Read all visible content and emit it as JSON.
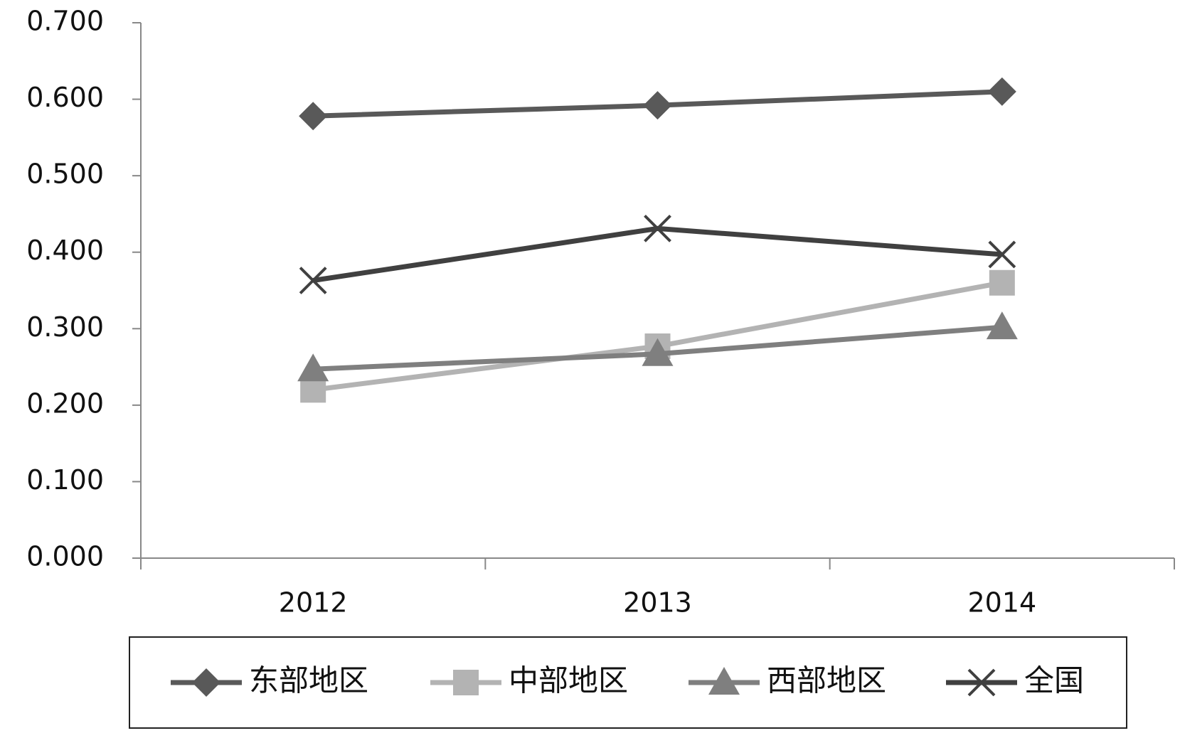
{
  "chart_data": {
    "type": "line",
    "categories": [
      "2012",
      "2013",
      "2014"
    ],
    "series": [
      {
        "name": "东部地区",
        "color": "#595959",
        "marker": "diamond",
        "values": [
          0.578,
          0.592,
          0.61
        ]
      },
      {
        "name": "中部地区",
        "color": "#b3b3b3",
        "marker": "square",
        "values": [
          0.22,
          0.277,
          0.36
        ]
      },
      {
        "name": "西部地区",
        "color": "#7f7f7f",
        "marker": "triangle",
        "values": [
          0.247,
          0.267,
          0.302
        ]
      },
      {
        "name": "全国",
        "color": "#404040",
        "marker": "x",
        "values": [
          0.363,
          0.431,
          0.397
        ]
      }
    ],
    "ylim": [
      0,
      0.7
    ],
    "yticks": [
      {
        "value": 0,
        "label": "0.000"
      },
      {
        "value": 0.1,
        "label": "0.100"
      },
      {
        "value": 0.2,
        "label": "0.200"
      },
      {
        "value": 0.3,
        "label": "0.300"
      },
      {
        "value": 0.4,
        "label": "0.400"
      },
      {
        "value": 0.5,
        "label": "0.500"
      },
      {
        "value": 0.6,
        "label": "0.600"
      },
      {
        "value": 0.7,
        "label": "0.700"
      }
    ],
    "grid": false,
    "legend": "bottom"
  }
}
